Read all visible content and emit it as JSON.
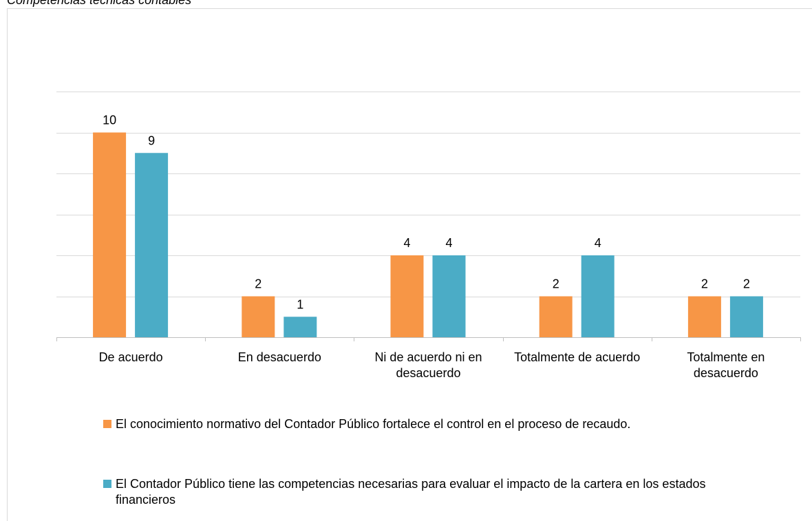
{
  "chart_data": {
    "type": "bar",
    "title": "Competencias técnicas contables",
    "categories": [
      "De acuerdo",
      "En desacuerdo",
      "Ni de acuerdo ni en desacuerdo",
      "Totalmente de acuerdo",
      "Totalmente en desacuerdo"
    ],
    "series": [
      {
        "name": "El conocimiento normativo del Contador Público fortalece el control en el proceso de recaudo.",
        "color": "#f79646",
        "values": [
          10,
          2,
          4,
          2,
          2
        ]
      },
      {
        "name": "El Contador Público tiene las competencias necesarias para evaluar el impacto de la cartera en los estados financieros",
        "color": "#4bacc6",
        "values": [
          9,
          1,
          4,
          4,
          2
        ]
      }
    ],
    "ylim": [
      0,
      12
    ],
    "yticks": [
      0,
      2,
      4,
      6,
      8,
      10,
      12
    ],
    "grid": true,
    "legend": "bottom"
  }
}
